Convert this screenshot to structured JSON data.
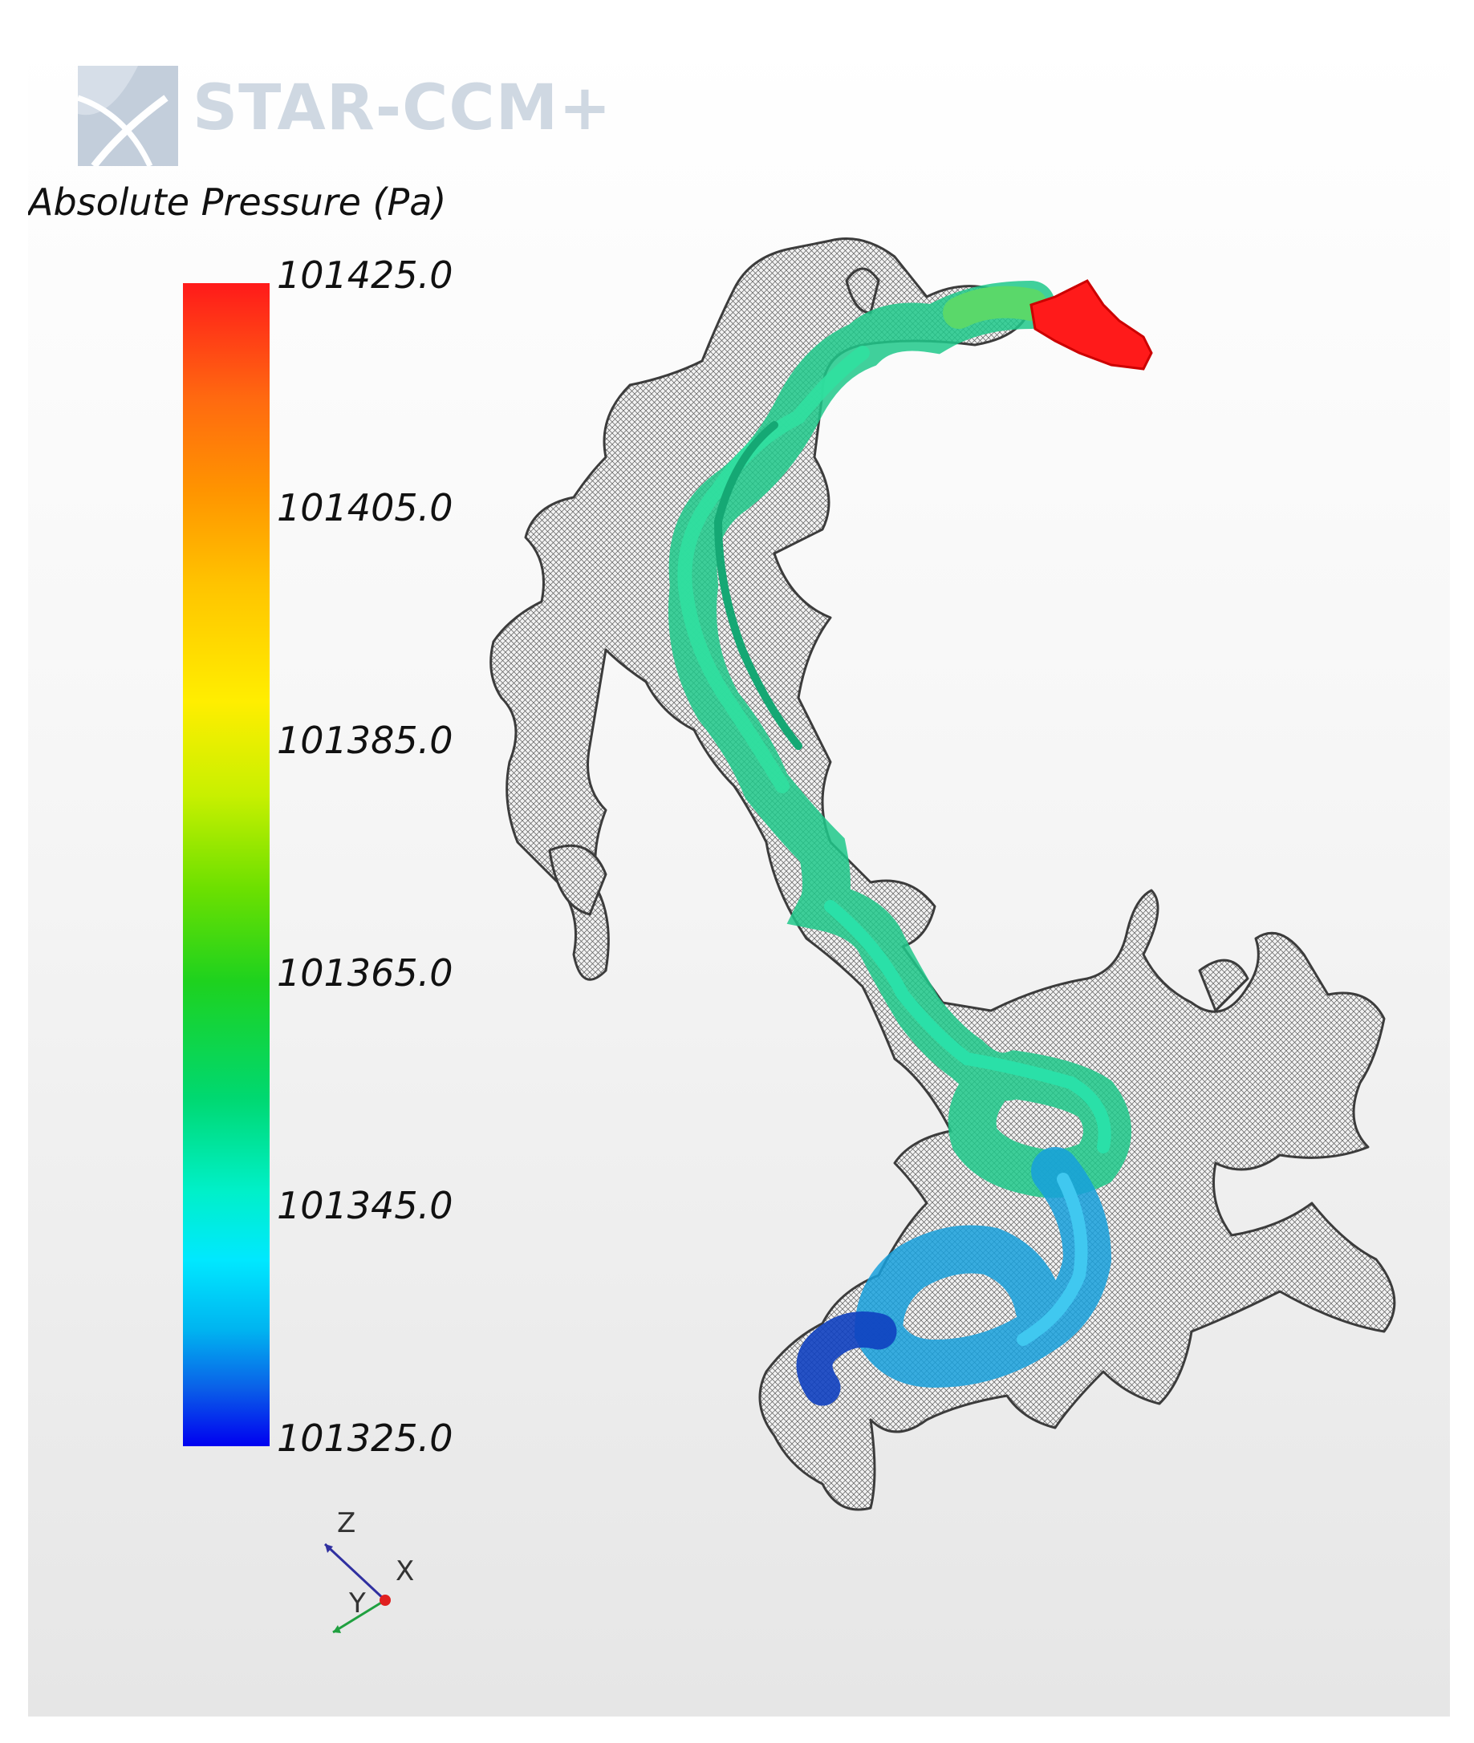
{
  "logo": {
    "text": "STAR-CCM+"
  },
  "legend": {
    "title": "Absolute Pressure (Pa)",
    "ticks": [
      "101425.0",
      "101405.0",
      "101385.0",
      "101365.0",
      "101345.0",
      "101325.0"
    ],
    "colors": {
      "max": "#ff1a1a",
      "mid": "#1ed21e",
      "min": "#0000f0"
    }
  },
  "triad": {
    "z": "Z",
    "x": "X",
    "y": "Y"
  },
  "colors": {
    "mesh": "#4a4a4a",
    "inlet": "#ff1a1a",
    "upper_flow": "#1fd18a",
    "lower_flow": "#18a8e0",
    "outlet": "#1040c0"
  }
}
